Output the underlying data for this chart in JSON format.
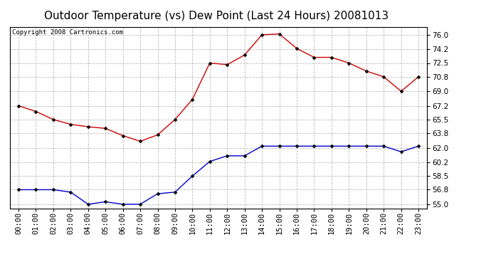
{
  "title": "Outdoor Temperature (vs) Dew Point (Last 24 Hours) 20081013",
  "copyright_text": "Copyright 2008 Cartronics.com",
  "hours": [
    "00:00",
    "01:00",
    "02:00",
    "03:00",
    "04:00",
    "05:00",
    "06:00",
    "07:00",
    "08:00",
    "09:00",
    "10:00",
    "11:00",
    "12:00",
    "13:00",
    "14:00",
    "15:00",
    "16:00",
    "17:00",
    "18:00",
    "19:00",
    "20:00",
    "21:00",
    "22:00",
    "23:00"
  ],
  "temp": [
    67.2,
    66.5,
    65.5,
    64.9,
    64.6,
    64.4,
    63.5,
    62.8,
    63.6,
    65.5,
    68.0,
    72.5,
    72.3,
    73.5,
    76.0,
    76.1,
    74.3,
    73.2,
    73.2,
    72.5,
    71.5,
    70.8,
    69.0,
    70.8
  ],
  "dew": [
    56.8,
    56.8,
    56.8,
    56.5,
    55.0,
    55.3,
    55.0,
    55.0,
    56.3,
    56.5,
    58.5,
    60.3,
    61.0,
    61.0,
    62.2,
    62.2,
    62.2,
    62.2,
    62.2,
    62.2,
    62.2,
    62.2,
    61.5,
    62.2
  ],
  "temp_color": "#cc0000",
  "dew_color": "#0000cc",
  "background_color": "#ffffff",
  "grid_color": "#bbbbbb",
  "yticks": [
    55.0,
    56.8,
    58.5,
    60.2,
    62.0,
    63.8,
    65.5,
    67.2,
    69.0,
    70.8,
    72.5,
    74.2,
    76.0
  ],
  "ylim": [
    54.5,
    77.0
  ],
  "title_fontsize": 11,
  "copyright_fontsize": 6.5,
  "tick_fontsize": 7.5,
  "marker": "D",
  "markersize": 2.5,
  "linewidth": 1.0
}
